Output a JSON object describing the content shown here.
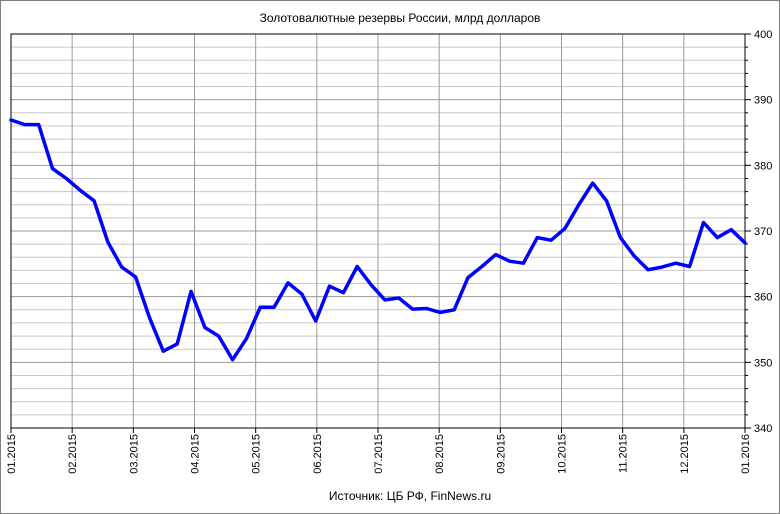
{
  "chart_data": {
    "type": "line",
    "title": "Золотовалютные резервы России, млрд долларов",
    "source": "Источник: ЦБ РФ, FinNews.ru",
    "xlabel": "",
    "ylabel": "",
    "ylim": [
      340,
      400
    ],
    "y_ticks": [
      340,
      350,
      360,
      370,
      380,
      390,
      400
    ],
    "y_axis_side": "right",
    "grid": true,
    "legend": "none",
    "line_color": "#0000ff",
    "x_tick_labels": [
      "01.2015",
      "02.2015",
      "03.2015",
      "04.2015",
      "05.2015",
      "06.2015",
      "07.2015",
      "08.2015",
      "09.2015",
      "10.2015",
      "11.2015",
      "12.2015",
      "01.2016"
    ],
    "series": [
      {
        "values": [
          386.9,
          386.2,
          386.2,
          379.5,
          378.0,
          376.2,
          374.6,
          368.3,
          364.5,
          363.0,
          356.8,
          351.7,
          352.8,
          360.8,
          355.3,
          354.0,
          350.4,
          353.6,
          358.4,
          358.4,
          362.1,
          360.4,
          356.3,
          361.6,
          360.6,
          364.6,
          361.8,
          359.5,
          359.8,
          358.1,
          358.2,
          357.6,
          358.0,
          362.9,
          364.6,
          366.4,
          365.4,
          365.1,
          369.0,
          368.6,
          370.4,
          374.0,
          377.3,
          374.6,
          369.0,
          366.2,
          364.1,
          364.5,
          365.1,
          364.6,
          371.3,
          369.0,
          370.2,
          368.2
        ]
      }
    ]
  }
}
